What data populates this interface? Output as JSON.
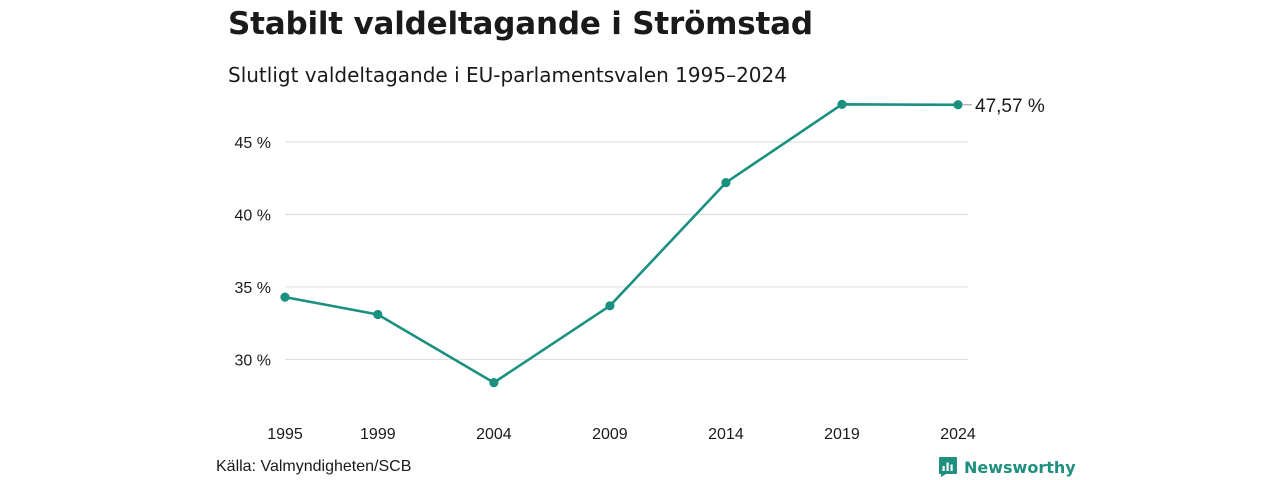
{
  "header": {
    "title": "Stabilt valdeltagande i Strömstad",
    "subtitle": "Slutligt valdeltagande i EU-parlamentsvalen 1995–2024"
  },
  "footer": {
    "source": "Källa: Valmyndigheten/SCB",
    "brand": "Newsworthy"
  },
  "colors": {
    "line": "#1a9080",
    "grid": "#e0e0e0",
    "text": "#1a1a1a"
  },
  "chart_data": {
    "type": "line",
    "title": "Stabilt valdeltagande i Strömstad",
    "subtitle": "Slutligt valdeltagande i EU-parlamentsvalen 1995–2024",
    "xlabel": "",
    "ylabel": "",
    "x": [
      "1995",
      "1999",
      "2004",
      "2009",
      "2014",
      "2019",
      "2024"
    ],
    "series": [
      {
        "values": [
          34.3,
          33.1,
          28.4,
          33.7,
          42.2,
          47.6,
          47.57
        ]
      }
    ],
    "yticks": [
      30,
      35,
      40,
      45
    ],
    "ytick_labels": [
      "30 %",
      "35 %",
      "40 %",
      "45 %"
    ],
    "ylim": [
      27.2,
      47.9
    ],
    "grid": true,
    "end_label": "47,57 %"
  }
}
